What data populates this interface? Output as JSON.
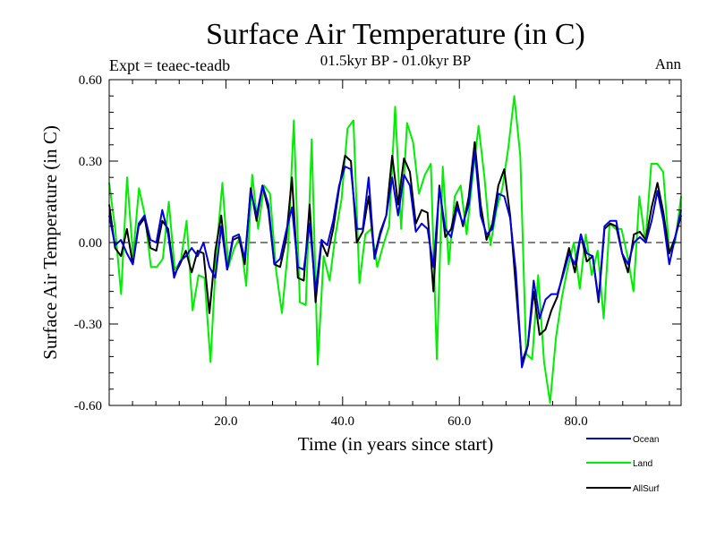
{
  "chart_data": {
    "type": "line",
    "title": "Surface Air Temperature (in C)",
    "subtitle": "01.5kyr BP - 01.0kyr BP",
    "left_label": "Expt = teaec-teadb",
    "right_label": "Ann",
    "xlabel": "Time (in years since start)",
    "ylabel": "Surface Air Temperature (in C)",
    "xlim": [
      0,
      98
    ],
    "ylim": [
      -0.6,
      0.6
    ],
    "x_tick_labels": [
      "20.0",
      "40.0",
      "60.0",
      "80.0"
    ],
    "y_tick_labels": [
      "0.60",
      "0.30",
      "0.00",
      "-0.30",
      "-0.60"
    ],
    "zero_line": "dashed",
    "series": [
      {
        "name": "Land",
        "color": "#00ee00",
        "values": [
          0.22,
          0.05,
          -0.19,
          0.24,
          -0.05,
          0.2,
          0.1,
          -0.09,
          -0.09,
          -0.06,
          0.15,
          -0.1,
          -0.07,
          0.08,
          -0.25,
          -0.12,
          -0.13,
          -0.44,
          -0.03,
          0.22,
          -0.09,
          -0.02,
          0.02,
          -0.16,
          0.25,
          0.05,
          0.21,
          0.18,
          -0.1,
          -0.26,
          -0.03,
          0.45,
          -0.22,
          -0.23,
          0.38,
          -0.45,
          -0.05,
          -0.14,
          0.03,
          0.16,
          0.42,
          0.45,
          -0.15,
          0.03,
          0.05,
          -0.09,
          -0.01,
          0.06,
          0.5,
          0.05,
          0.44,
          0.37,
          0.18,
          0.25,
          0.29,
          -0.43,
          0.28,
          -0.08,
          0.17,
          0.21,
          0.03,
          0.24,
          0.43,
          0.24,
          -0.01,
          0.12,
          0.2,
          0.35,
          0.54,
          0.32,
          -0.41,
          -0.43,
          -0.12,
          -0.44,
          -0.59,
          -0.35,
          -0.2,
          -0.09,
          0.0,
          -0.17,
          0.03,
          -0.12,
          -0.03,
          -0.28,
          0.07,
          0.05,
          0.05,
          -0.05,
          -0.18,
          0.17,
          0.0,
          0.29,
          0.29,
          0.26,
          -0.03,
          0.0,
          0.17
        ]
      },
      {
        "name": "Ocean",
        "color": "#0000dd",
        "values": [
          0.1,
          -0.01,
          0.01,
          -0.04,
          -0.08,
          0.07,
          0.1,
          0.01,
          0.0,
          0.12,
          0.03,
          -0.13,
          -0.07,
          -0.05,
          -0.02,
          -0.05,
          0.0,
          -0.09,
          -0.13,
          0.06,
          -0.1,
          0.02,
          0.03,
          -0.06,
          0.19,
          0.1,
          0.21,
          0.14,
          -0.08,
          -0.06,
          0.04,
          0.13,
          -0.09,
          -0.1,
          0.07,
          -0.18,
          0.01,
          -0.01,
          0.08,
          0.21,
          0.28,
          0.27,
          0.05,
          0.05,
          0.24,
          -0.06,
          0.03,
          0.1,
          0.24,
          0.1,
          0.25,
          0.21,
          0.04,
          0.07,
          0.05,
          -0.09,
          0.2,
          0.05,
          0.02,
          0.13,
          0.07,
          0.14,
          0.34,
          0.1,
          0.03,
          0.05,
          0.18,
          0.17,
          0.09,
          -0.11,
          -0.46,
          -0.38,
          -0.14,
          -0.28,
          -0.21,
          -0.19,
          -0.19,
          -0.12,
          -0.04,
          -0.08,
          0.03,
          -0.04,
          -0.05,
          -0.21,
          0.06,
          0.08,
          0.08,
          -0.04,
          -0.08,
          0.0,
          0.02,
          0.0,
          0.08,
          0.19,
          0.08,
          -0.08,
          0.02,
          0.12
        ]
      },
      {
        "name": "AllSurf",
        "color": "#000000",
        "values": [
          0.14,
          -0.02,
          -0.05,
          0.05,
          -0.08,
          0.06,
          0.09,
          -0.02,
          -0.03,
          0.08,
          0.05,
          -0.12,
          -0.08,
          -0.03,
          -0.11,
          -0.03,
          -0.04,
          -0.26,
          -0.03,
          0.1,
          -0.1,
          0.01,
          0.02,
          -0.08,
          0.2,
          0.08,
          0.21,
          0.12,
          -0.08,
          -0.09,
          0.01,
          0.24,
          -0.13,
          -0.14,
          0.14,
          -0.22,
          0.0,
          -0.05,
          0.05,
          0.2,
          0.32,
          0.3,
          0.0,
          0.04,
          0.17,
          -0.05,
          0.04,
          0.1,
          0.32,
          0.14,
          0.31,
          0.26,
          0.07,
          0.12,
          0.11,
          -0.18,
          0.21,
          0.02,
          0.05,
          0.15,
          0.06,
          0.17,
          0.37,
          0.14,
          0.01,
          0.07,
          0.21,
          0.27,
          0.1,
          -0.17,
          -0.44,
          -0.38,
          -0.18,
          -0.34,
          -0.32,
          -0.25,
          -0.2,
          -0.11,
          -0.02,
          -0.11,
          0.03,
          -0.07,
          -0.05,
          -0.22,
          0.05,
          0.07,
          0.06,
          -0.04,
          -0.11,
          0.03,
          0.04,
          0.01,
          0.13,
          0.22,
          0.11,
          -0.04,
          0.02,
          0.1
        ]
      }
    ],
    "legend": {
      "position": "bottom-right",
      "entries": [
        "Ocean",
        "Land",
        "AllSurf"
      ]
    }
  }
}
